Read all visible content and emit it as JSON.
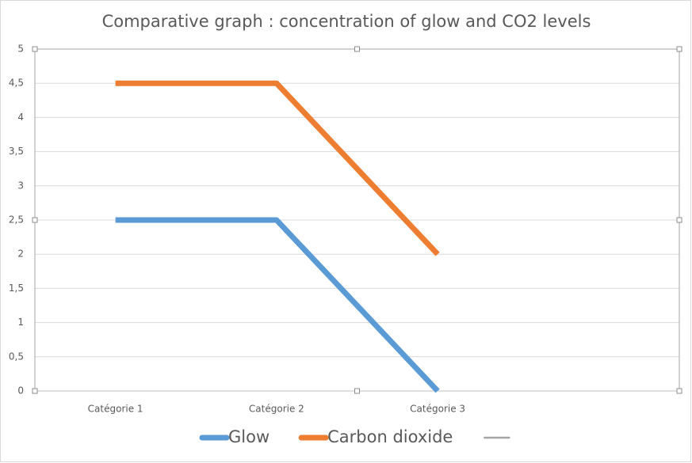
{
  "chart_data": {
    "type": "line",
    "title": "Comparative graph : concentration of glow and CO2 levels",
    "categories": [
      "Catégorie 1",
      "Catégorie 2",
      "Catégorie 3",
      null
    ],
    "series": [
      {
        "name": "Glow",
        "color": "#5b9bd5",
        "values": [
          2.5,
          2.5,
          0,
          null
        ]
      },
      {
        "name": "Carbon dioxide",
        "color": "#ed7d31",
        "values": [
          4.5,
          4.5,
          2,
          null
        ]
      },
      {
        "color": "#a5a5a5",
        "values": [
          null,
          null,
          null,
          null
        ]
      }
    ],
    "ylim": [
      0,
      5
    ],
    "yticks": [
      0,
      {
        "value": 0.5,
        "label": "0,5"
      },
      1,
      {
        "value": 1.5,
        "label": "1,5"
      },
      2,
      {
        "value": 2.5,
        "label": "2,5"
      },
      3,
      {
        "value": 3.5,
        "label": "3,5"
      },
      4,
      {
        "value": 4.5,
        "label": "4,5"
      },
      5
    ],
    "grid": true,
    "legend": "bottom"
  }
}
